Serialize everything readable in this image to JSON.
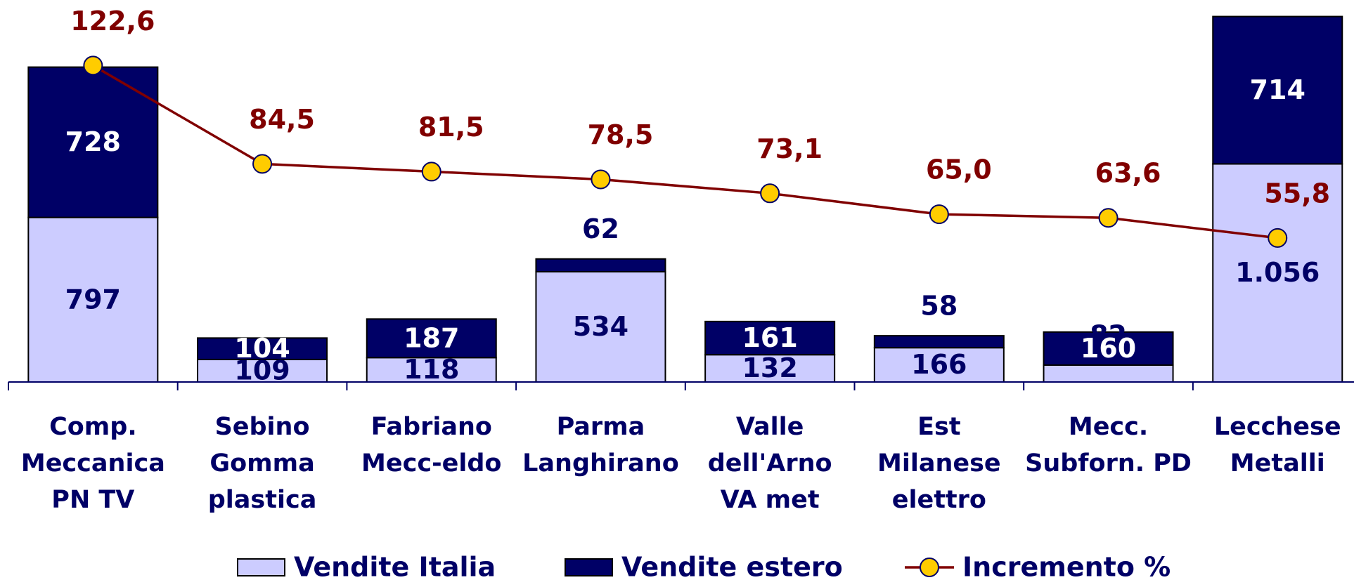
{
  "chart_data": {
    "type": "bar",
    "categories": [
      "Comp.\nMeccanica\nPN TV",
      "Sebino\nGomma\nplastica",
      "Fabriano\nMecc-eldo",
      "Parma\nLanghirano",
      "Valle\ndell'Arno\nVA met",
      "Est\nMilanese\nelettro",
      "Mecc.\nSubforn. PD",
      "Lecchese\nMetalli"
    ],
    "stacked": true,
    "ylim": [
      0,
      1850
    ],
    "y2lim": [
      0,
      148
    ],
    "series": [
      {
        "name": "Vendite Italia",
        "type": "bar",
        "color": "#ccccff",
        "label_color": "#000066",
        "values": [
          797,
          109,
          118,
          534,
          132,
          166,
          82,
          1056
        ],
        "value_labels": [
          "797",
          "109",
          "118",
          "534",
          "132",
          "166",
          "82",
          "1.056"
        ]
      },
      {
        "name": "Vendite estero",
        "type": "bar",
        "color": "#000066",
        "label_color": "#ffffff",
        "values": [
          728,
          104,
          187,
          62,
          161,
          58,
          160,
          714
        ]
      },
      {
        "name": "Incremento %",
        "type": "line",
        "axis": "y2",
        "color": "#800000",
        "marker_color": "#ffcc00",
        "values": [
          122.6,
          84.5,
          81.5,
          78.5,
          73.1,
          65.0,
          63.6,
          55.8
        ],
        "value_labels": [
          "122,6",
          "84,5",
          "81,5",
          "78,5",
          "73,1",
          "65,0",
          "63,6",
          "55,8"
        ]
      }
    ]
  }
}
